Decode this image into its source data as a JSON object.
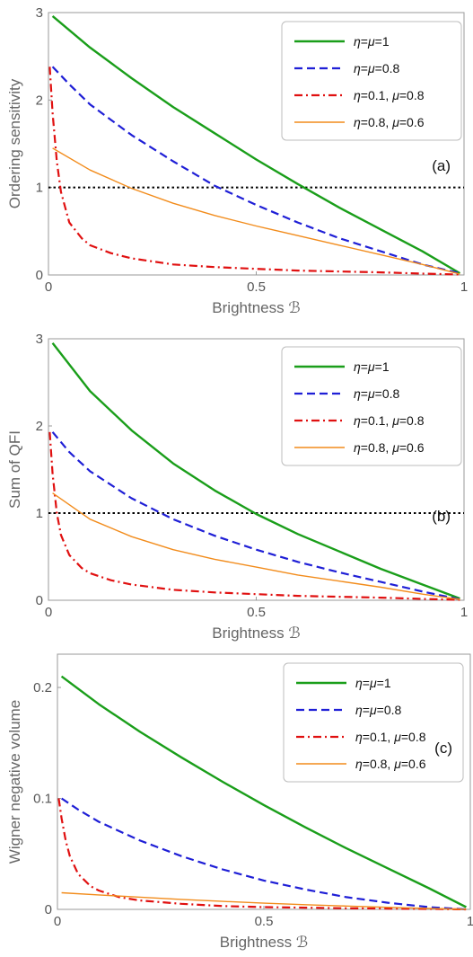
{
  "chart_data": [
    {
      "type": "line",
      "panel_label": "(a)",
      "xlabel": "Brightness ℬ",
      "ylabel": "Ordering sensitivity",
      "xlim": [
        0,
        1
      ],
      "ylim": [
        0,
        3
      ],
      "xticks": [
        "0",
        "0.5",
        "1"
      ],
      "yticks": [
        "0",
        "1",
        "2",
        "3"
      ],
      "legend_position": "top-right",
      "reference_line": {
        "y": 1,
        "style": "dotted",
        "color": "#000000"
      },
      "series": [
        {
          "name": "η=μ=1",
          "color": "#1a9e1a",
          "style": "solid",
          "width": 2.4,
          "x": [
            0.01,
            0.1,
            0.2,
            0.3,
            0.4,
            0.5,
            0.6,
            0.7,
            0.8,
            0.9,
            0.99
          ],
          "y": [
            2.96,
            2.6,
            2.25,
            1.92,
            1.62,
            1.32,
            1.04,
            0.77,
            0.52,
            0.27,
            0.02
          ]
        },
        {
          "name": "η=μ=0.8",
          "color": "#1f1fd6",
          "style": "dashed",
          "width": 2.2,
          "x": [
            0.01,
            0.05,
            0.1,
            0.2,
            0.3,
            0.4,
            0.5,
            0.6,
            0.7,
            0.8,
            0.9,
            0.99
          ],
          "y": [
            2.38,
            2.18,
            1.95,
            1.6,
            1.3,
            1.02,
            0.8,
            0.6,
            0.42,
            0.27,
            0.12,
            0.02
          ]
        },
        {
          "name": "η=0.1, μ=0.8",
          "color": "#e01010",
          "style": "dashdot",
          "width": 2.2,
          "x": [
            0.003,
            0.01,
            0.02,
            0.03,
            0.05,
            0.08,
            0.1,
            0.15,
            0.2,
            0.3,
            0.4,
            0.5,
            0.6,
            0.7,
            0.8,
            0.9,
            0.99
          ],
          "y": [
            2.38,
            1.85,
            1.3,
            0.95,
            0.6,
            0.42,
            0.34,
            0.25,
            0.19,
            0.12,
            0.09,
            0.07,
            0.05,
            0.04,
            0.03,
            0.015,
            0.005
          ]
        },
        {
          "name": "η=0.8, μ=0.6",
          "color": "#f28c1c",
          "style": "solid",
          "width": 1.4,
          "x": [
            0.01,
            0.1,
            0.2,
            0.3,
            0.4,
            0.5,
            0.6,
            0.7,
            0.8,
            0.9,
            0.99
          ],
          "y": [
            1.45,
            1.2,
            0.99,
            0.82,
            0.68,
            0.56,
            0.45,
            0.34,
            0.23,
            0.12,
            0.01
          ]
        }
      ]
    },
    {
      "type": "line",
      "panel_label": "(b)",
      "xlabel": "Brightness ℬ",
      "ylabel": "Sum of QFI",
      "xlim": [
        0,
        1
      ],
      "ylim": [
        0,
        3
      ],
      "xticks": [
        "0",
        "0.5",
        "1"
      ],
      "yticks": [
        "0",
        "1",
        "2",
        "3"
      ],
      "legend_position": "top-right",
      "reference_line": {
        "y": 1,
        "style": "dotted",
        "color": "#000000"
      },
      "series": [
        {
          "name": "η=μ=1",
          "color": "#1a9e1a",
          "style": "solid",
          "width": 2.4,
          "x": [
            0.01,
            0.1,
            0.2,
            0.3,
            0.4,
            0.5,
            0.6,
            0.7,
            0.8,
            0.9,
            0.99
          ],
          "y": [
            2.95,
            2.4,
            1.95,
            1.57,
            1.26,
            0.99,
            0.76,
            0.56,
            0.36,
            0.18,
            0.02
          ]
        },
        {
          "name": "η=μ=0.8",
          "color": "#1f1fd6",
          "style": "dashed",
          "width": 2.2,
          "x": [
            0.01,
            0.05,
            0.1,
            0.2,
            0.3,
            0.4,
            0.5,
            0.6,
            0.7,
            0.8,
            0.9,
            0.99
          ],
          "y": [
            1.93,
            1.7,
            1.48,
            1.17,
            0.93,
            0.74,
            0.58,
            0.44,
            0.32,
            0.21,
            0.1,
            0.01
          ]
        },
        {
          "name": "η=0.1, μ=0.8",
          "color": "#e01010",
          "style": "dashdot",
          "width": 2.2,
          "x": [
            0.003,
            0.01,
            0.02,
            0.03,
            0.05,
            0.08,
            0.1,
            0.15,
            0.2,
            0.3,
            0.4,
            0.5,
            0.6,
            0.7,
            0.8,
            0.9,
            0.99
          ],
          "y": [
            1.93,
            1.45,
            1.0,
            0.75,
            0.52,
            0.37,
            0.31,
            0.23,
            0.18,
            0.12,
            0.09,
            0.07,
            0.05,
            0.04,
            0.03,
            0.015,
            0.005
          ]
        },
        {
          "name": "η=0.8, μ=0.6",
          "color": "#f28c1c",
          "style": "solid",
          "width": 1.4,
          "x": [
            0.01,
            0.1,
            0.2,
            0.3,
            0.4,
            0.5,
            0.6,
            0.7,
            0.8,
            0.9,
            0.99
          ],
          "y": [
            1.23,
            0.93,
            0.73,
            0.58,
            0.47,
            0.38,
            0.29,
            0.22,
            0.15,
            0.07,
            0.01
          ]
        }
      ]
    },
    {
      "type": "line",
      "panel_label": "(c)",
      "xlabel": "Brightness ℬ",
      "ylabel": "Wigner negative volume",
      "xlim": [
        0,
        1
      ],
      "ylim": [
        0,
        0.23
      ],
      "xticks": [
        "0",
        "0.5",
        "1"
      ],
      "ytick_values": [
        0,
        0.1,
        0.2
      ],
      "yticks": [
        "0",
        "0.1",
        "0.2"
      ],
      "legend_position": "top-right",
      "series": [
        {
          "name": "η=μ=1",
          "color": "#1a9e1a",
          "style": "solid",
          "width": 2.4,
          "x": [
            0.01,
            0.1,
            0.2,
            0.3,
            0.4,
            0.5,
            0.6,
            0.7,
            0.8,
            0.9,
            0.99
          ],
          "y": [
            0.21,
            0.185,
            0.16,
            0.137,
            0.115,
            0.094,
            0.074,
            0.055,
            0.037,
            0.019,
            0.002
          ]
        },
        {
          "name": "η=μ=0.8",
          "color": "#1f1fd6",
          "style": "dashed",
          "width": 2.2,
          "x": [
            0.01,
            0.05,
            0.1,
            0.2,
            0.3,
            0.4,
            0.5,
            0.6,
            0.7,
            0.8,
            0.9,
            0.99
          ],
          "y": [
            0.1,
            0.09,
            0.079,
            0.062,
            0.048,
            0.036,
            0.026,
            0.018,
            0.011,
            0.006,
            0.002,
            0.0
          ]
        },
        {
          "name": "η=0.1, μ=0.8",
          "color": "#e01010",
          "style": "dashdot",
          "width": 2.2,
          "x": [
            0.003,
            0.01,
            0.02,
            0.03,
            0.05,
            0.08,
            0.1,
            0.15,
            0.2,
            0.3,
            0.4,
            0.5,
            0.6,
            0.7,
            0.8,
            0.9,
            0.99
          ],
          "y": [
            0.1,
            0.082,
            0.062,
            0.048,
            0.032,
            0.021,
            0.017,
            0.011,
            0.008,
            0.005,
            0.003,
            0.002,
            0.0015,
            0.001,
            0.0007,
            0.0004,
            0.0
          ]
        },
        {
          "name": "η=0.8, μ=0.6",
          "color": "#f28c1c",
          "style": "solid",
          "width": 1.4,
          "x": [
            0.01,
            0.1,
            0.2,
            0.3,
            0.4,
            0.5,
            0.6,
            0.7,
            0.8,
            0.9,
            0.99
          ],
          "y": [
            0.015,
            0.013,
            0.011,
            0.009,
            0.0072,
            0.0056,
            0.0042,
            0.003,
            0.0019,
            0.0009,
            0.0001
          ]
        }
      ]
    }
  ]
}
